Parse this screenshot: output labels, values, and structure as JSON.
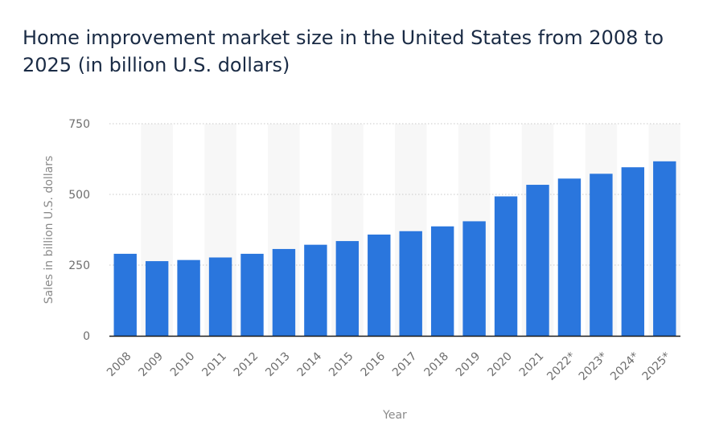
{
  "chart_data": {
    "type": "bar",
    "title": "Home improvement market size in the United States from 2008 to 2025 (in billion U.S. dollars)",
    "xlabel": "Year",
    "ylabel": "Sales in billion U.S. dollars",
    "categories": [
      "2008",
      "2009",
      "2010",
      "2011",
      "2012",
      "2013",
      "2014",
      "2015",
      "2016",
      "2017",
      "2018",
      "2019",
      "2020",
      "2021",
      "2022*",
      "2023*",
      "2024*",
      "2025*"
    ],
    "values": [
      290,
      264,
      268,
      277,
      290,
      307,
      322,
      335,
      358,
      370,
      387,
      405,
      493,
      534,
      556,
      573,
      596,
      617
    ],
    "ylim": [
      0,
      750
    ],
    "yticks": [
      0,
      250,
      500,
      750
    ],
    "grid": true,
    "legend": "none",
    "colors": {
      "bar": "#2a76dd",
      "band": "#f7f7f7",
      "grid": "#c9c9c9",
      "axis": "#1a1a1a"
    }
  }
}
